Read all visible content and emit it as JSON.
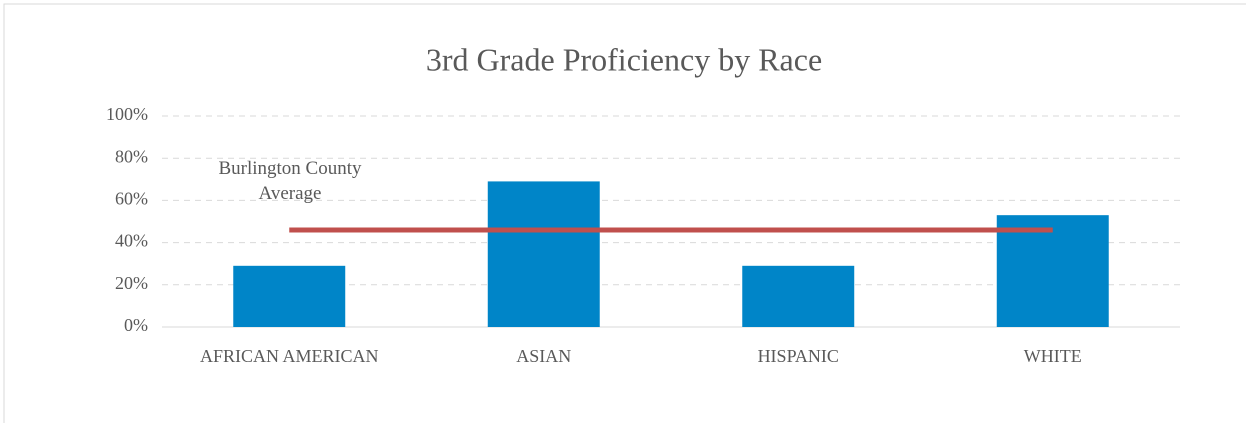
{
  "chart_data": {
    "type": "bar",
    "title": "3rd Grade Proficiency by Race",
    "categories": [
      "AFRICAN AMERICAN",
      "ASIAN",
      "HISPANIC",
      "WHITE"
    ],
    "series": [
      {
        "name": "Proficiency",
        "type": "bar",
        "color": "#0085c8",
        "values": [
          29,
          69,
          29,
          53
        ]
      },
      {
        "name": "Burlington County Average",
        "type": "line",
        "color": "#c0504d",
        "values": [
          46,
          46,
          46,
          46
        ]
      }
    ],
    "ylim": [
      0,
      100
    ],
    "yticks": [
      {
        "value": 0,
        "label": "0%"
      },
      {
        "value": 20,
        "label": "20%"
      },
      {
        "value": 40,
        "label": "40%"
      },
      {
        "value": 60,
        "label": "60%"
      },
      {
        "value": 80,
        "label": "80%"
      },
      {
        "value": 100,
        "label": "100%"
      }
    ],
    "grid": true
  }
}
